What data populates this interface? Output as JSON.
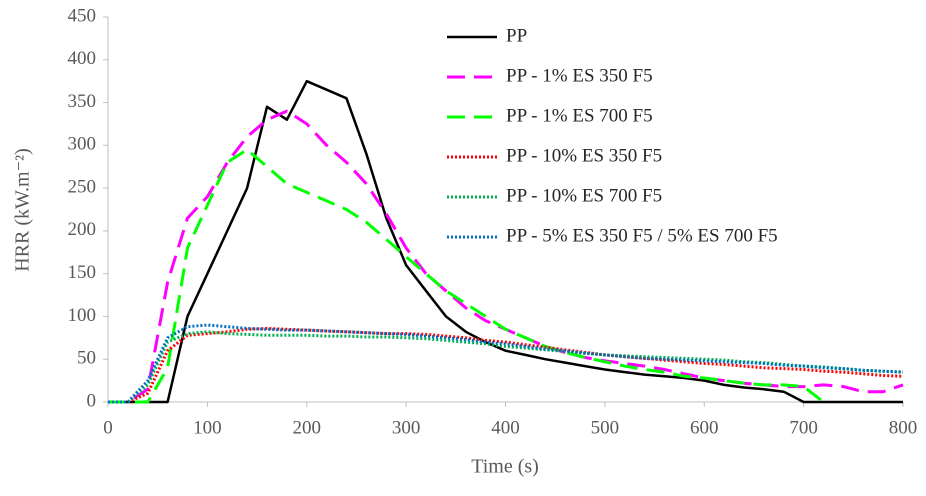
{
  "chart_data": {
    "type": "line",
    "x_label": "Time (s)",
    "y_label": "HRR (kW.m⁻²)",
    "xlim": [
      0,
      800
    ],
    "xticks": [
      0,
      100,
      200,
      300,
      400,
      500,
      600,
      700,
      800
    ],
    "ylim": [
      0,
      450
    ],
    "yticks": [
      0,
      50,
      100,
      150,
      200,
      250,
      300,
      350,
      400,
      450
    ],
    "grid": false,
    "legend": "top",
    "x": [
      0,
      20,
      40,
      60,
      80,
      100,
      120,
      140,
      160,
      180,
      200,
      220,
      240,
      260,
      280,
      300,
      320,
      340,
      360,
      380,
      400,
      420,
      440,
      460,
      480,
      500,
      520,
      540,
      560,
      580,
      600,
      620,
      640,
      660,
      680,
      700,
      720,
      740,
      760,
      780,
      800
    ],
    "series": [
      {
        "name": "PP",
        "color": "#000000",
        "style": "solid",
        "values": [
          0,
          0,
          0,
          0,
          100,
          150,
          200,
          250,
          345,
          330,
          375,
          365,
          355,
          290,
          215,
          160,
          130,
          100,
          82,
          70,
          60,
          55,
          50,
          46,
          42,
          38,
          35,
          32,
          30,
          28,
          25,
          20,
          17,
          15,
          12,
          0,
          0,
          0,
          0,
          0,
          0
        ]
      },
      {
        "name": "PP - 1% ES 350 F5",
        "color": "#ff00ff",
        "style": "dashed",
        "values": [
          0,
          0,
          15,
          140,
          215,
          240,
          280,
          310,
          330,
          340,
          325,
          300,
          280,
          255,
          220,
          180,
          150,
          130,
          110,
          95,
          85,
          75,
          65,
          58,
          52,
          48,
          45,
          42,
          38,
          33,
          28,
          25,
          22,
          20,
          18,
          18,
          20,
          18,
          12,
          12,
          20
        ]
      },
      {
        "name": "PP - 1% ES 700 F5",
        "color": "#00ff00",
        "style": "dashed",
        "values": [
          0,
          0,
          0,
          40,
          180,
          230,
          280,
          295,
          275,
          255,
          245,
          235,
          225,
          210,
          190,
          170,
          150,
          130,
          115,
          100,
          85,
          75,
          65,
          58,
          52,
          47,
          42,
          38,
          35,
          30,
          28,
          25,
          22,
          20,
          20,
          18,
          0,
          null,
          null,
          null,
          null
        ]
      },
      {
        "name": "PP - 10% ES 350 F5",
        "color": "#ff0000",
        "style": "dotted",
        "values": [
          0,
          0,
          10,
          60,
          78,
          80,
          82,
          85,
          86,
          85,
          84,
          83,
          82,
          81,
          80,
          80,
          79,
          77,
          75,
          72,
          70,
          67,
          64,
          61,
          58,
          55,
          53,
          51,
          49,
          47,
          45,
          44,
          42,
          40,
          39,
          38,
          36,
          35,
          33,
          31,
          30
        ]
      },
      {
        "name": "PP - 10% ES 700 F5",
        "color": "#00b050",
        "style": "dotted",
        "values": [
          0,
          0,
          20,
          70,
          80,
          82,
          80,
          79,
          78,
          78,
          78,
          77,
          77,
          76,
          76,
          75,
          74,
          72,
          70,
          68,
          65,
          63,
          61,
          59,
          57,
          55,
          54,
          53,
          52,
          51,
          50,
          49,
          47,
          46,
          44,
          42,
          41,
          39,
          37,
          36,
          35
        ]
      },
      {
        "name": "PP - 5% ES 350 F5 / 5% ES 700 F5",
        "color": "#0070c0",
        "style": "dotted",
        "values": [
          0,
          0,
          25,
          75,
          88,
          90,
          88,
          86,
          85,
          84,
          84,
          83,
          82,
          81,
          80,
          79,
          77,
          75,
          73,
          70,
          68,
          65,
          62,
          60,
          57,
          55,
          53,
          51,
          50,
          49,
          48,
          47,
          46,
          45,
          43,
          42,
          40,
          39,
          37,
          36,
          35
        ]
      }
    ]
  }
}
